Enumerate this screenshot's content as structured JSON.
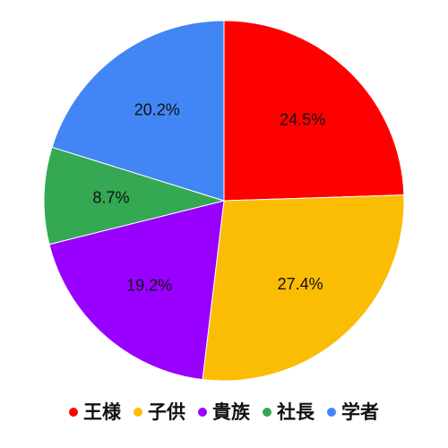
{
  "chart_data": {
    "type": "pie",
    "title": "",
    "categories": [
      "王様",
      "子供",
      "貴族",
      "社長",
      "学者"
    ],
    "values": [
      24.5,
      27.4,
      19.2,
      8.7,
      20.2
    ],
    "labels": [
      "24.5%",
      "27.4%",
      "19.2%",
      "8.7%",
      "20.2%"
    ],
    "colors": [
      "#ff0000",
      "#fbbc04",
      "#9900ff",
      "#34a853",
      "#4285f4"
    ],
    "legend": "bottom"
  }
}
